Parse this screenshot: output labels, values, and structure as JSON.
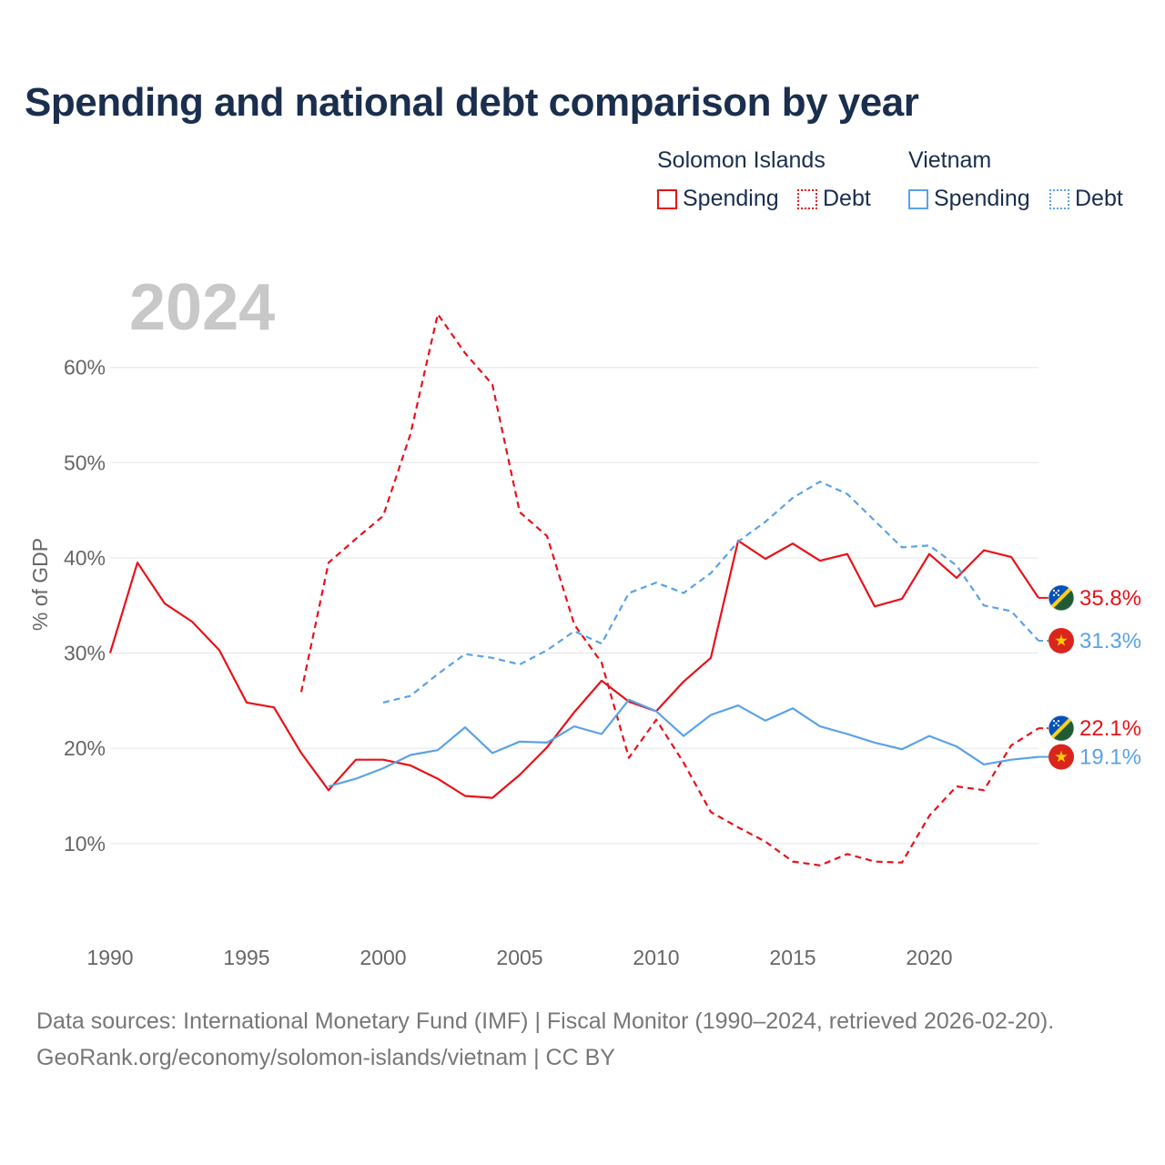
{
  "title": "Spending and national debt comparison by year",
  "legend": {
    "solomon": {
      "name": "Solomon Islands",
      "spending": "Spending",
      "debt": "Debt"
    },
    "vietnam": {
      "name": "Vietnam",
      "spending": "Spending",
      "debt": "Debt"
    }
  },
  "colors": {
    "solomon": "#e8111a",
    "vietnam": "#5aa2e6"
  },
  "footer": {
    "line1": "Data sources: International Monetary Fund (IMF) | Fiscal Monitor (1990–2024, retrieved 2026-02-20).",
    "line2": "GeoRank.org/economy/solomon-islands/vietnam | CC BY"
  },
  "chart_data": {
    "type": "line",
    "year_label": "2024",
    "ylabel": "% of GDP",
    "xlim": [
      1990,
      2024
    ],
    "ylim": [
      3,
      68
    ],
    "x_ticks": [
      1990,
      1995,
      2000,
      2005,
      2010,
      2015,
      2020
    ],
    "y_ticks": [
      10,
      20,
      30,
      40,
      50,
      60
    ],
    "y_tick_labels": [
      "10%",
      "20%",
      "30%",
      "40%",
      "50%",
      "60%"
    ],
    "series": [
      {
        "name": "Solomon Islands Spending",
        "country": "solomon",
        "style": "solid",
        "end_label": "35.8%",
        "flag": "solomon-islands-flag",
        "x": [
          1990,
          1991,
          1992,
          1993,
          1994,
          1995,
          1996,
          1997,
          1998,
          1999,
          2000,
          2001,
          2002,
          2003,
          2004,
          2005,
          2006,
          2007,
          2008,
          2009,
          2010,
          2011,
          2012,
          2013,
          2014,
          2015,
          2016,
          2017,
          2018,
          2019,
          2020,
          2021,
          2022,
          2023,
          2024
        ],
        "y": [
          30.0,
          39.5,
          35.2,
          33.3,
          30.3,
          24.8,
          24.3,
          19.5,
          15.6,
          18.8,
          18.8,
          18.2,
          16.8,
          15.0,
          14.8,
          17.2,
          20.1,
          23.8,
          27.1,
          24.9,
          23.9,
          27.0,
          29.5,
          41.8,
          39.9,
          41.5,
          39.7,
          40.4,
          34.9,
          35.7,
          40.4,
          37.9,
          40.8,
          40.1,
          35.8
        ]
      },
      {
        "name": "Solomon Islands Debt",
        "country": "solomon",
        "style": "dashed",
        "end_label": "22.1%",
        "flag": "solomon-islands-flag",
        "x": [
          1997,
          1998,
          1999,
          2000,
          2001,
          2002,
          2003,
          2004,
          2005,
          2006,
          2007,
          2008,
          2009,
          2010,
          2011,
          2012,
          2013,
          2014,
          2015,
          2016,
          2017,
          2018,
          2019,
          2020,
          2021,
          2022,
          2023,
          2024
        ],
        "y": [
          25.9,
          39.5,
          42.0,
          44.4,
          53.0,
          65.6,
          61.5,
          58.2,
          44.8,
          42.3,
          33.0,
          29.0,
          19.0,
          23.0,
          18.5,
          13.3,
          11.7,
          10.2,
          8.1,
          7.7,
          8.9,
          8.1,
          8.0,
          12.9,
          16.0,
          15.6,
          20.3,
          22.1
        ]
      },
      {
        "name": "Vietnam Spending",
        "country": "vietnam",
        "style": "solid",
        "end_label": "19.1%",
        "flag": "vietnam-flag",
        "x": [
          1998,
          1999,
          2000,
          2001,
          2002,
          2003,
          2004,
          2005,
          2006,
          2007,
          2008,
          2009,
          2010,
          2011,
          2012,
          2013,
          2014,
          2015,
          2016,
          2017,
          2018,
          2019,
          2020,
          2021,
          2022,
          2023,
          2024
        ],
        "y": [
          16.0,
          16.8,
          17.9,
          19.3,
          19.8,
          22.2,
          19.5,
          20.7,
          20.6,
          22.3,
          21.5,
          25.1,
          23.9,
          21.3,
          23.5,
          24.5,
          22.9,
          24.2,
          22.3,
          21.5,
          20.6,
          19.9,
          21.3,
          20.2,
          18.3,
          18.8,
          19.1
        ]
      },
      {
        "name": "Vietnam Debt",
        "country": "vietnam",
        "style": "dashed",
        "end_label": "31.3%",
        "flag": "vietnam-flag",
        "x": [
          2000,
          2001,
          2002,
          2003,
          2004,
          2005,
          2006,
          2007,
          2008,
          2009,
          2010,
          2011,
          2012,
          2013,
          2014,
          2015,
          2016,
          2017,
          2018,
          2019,
          2020,
          2021,
          2022,
          2023,
          2024
        ],
        "y": [
          24.8,
          25.5,
          27.8,
          29.9,
          29.5,
          28.8,
          30.3,
          32.3,
          31.0,
          36.3,
          37.4,
          36.3,
          38.4,
          41.7,
          43.8,
          46.3,
          48.0,
          46.7,
          43.9,
          41.1,
          41.3,
          39.2,
          35.0,
          34.4,
          31.3
        ]
      }
    ]
  }
}
